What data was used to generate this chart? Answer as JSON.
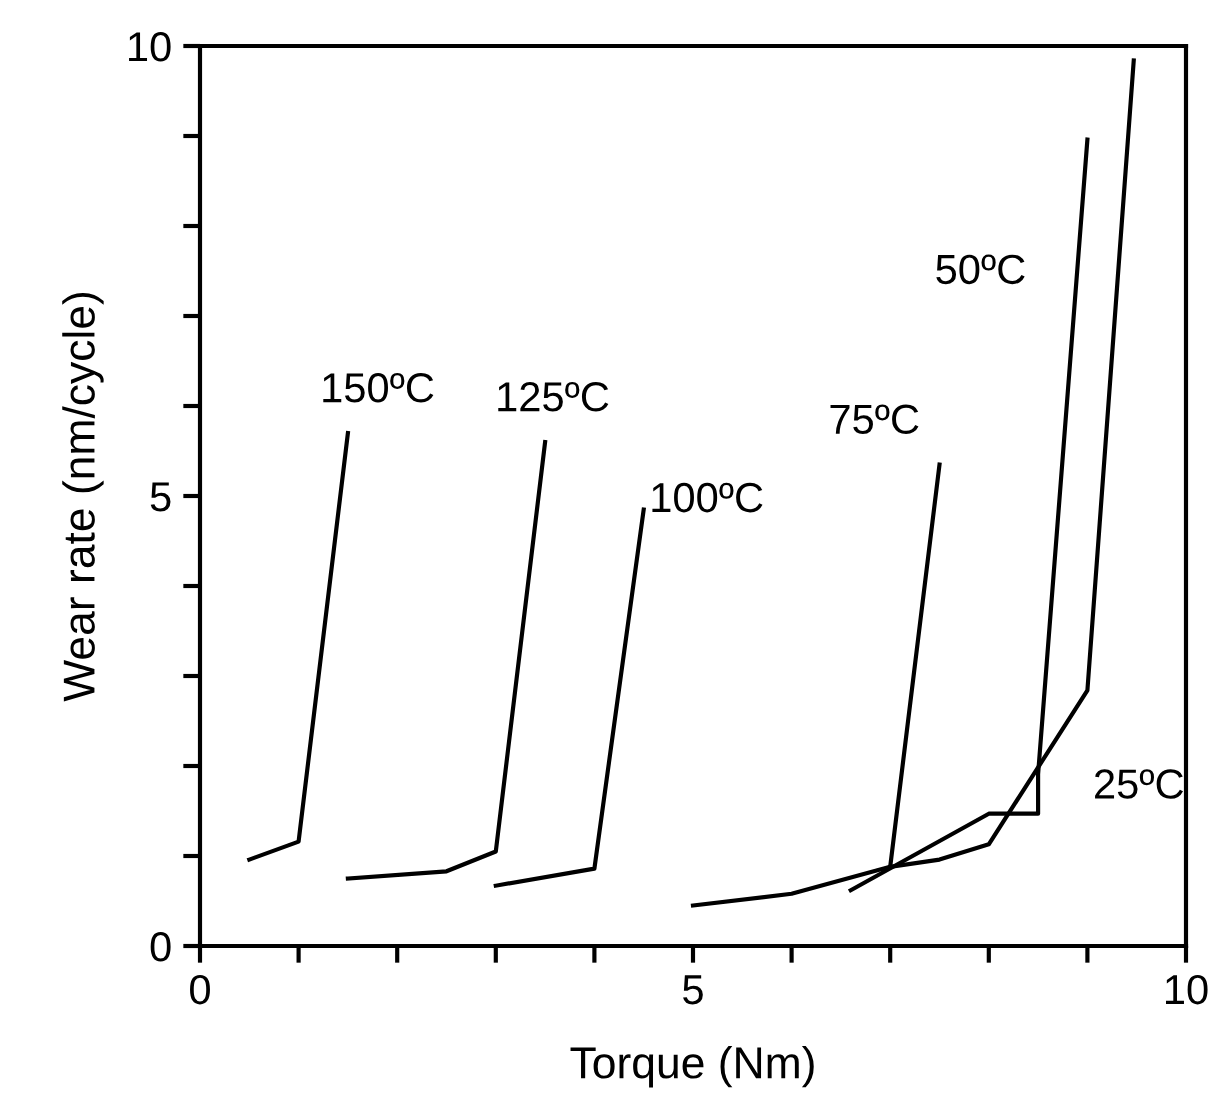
{
  "chart_data": {
    "type": "line",
    "xlabel": "Torque (Nm)",
    "ylabel": "Wear rate (nm/cycle)",
    "xlim": [
      0,
      10
    ],
    "ylim": [
      0,
      10
    ],
    "xticks": [
      0,
      {
        "value": 1,
        "label": null
      },
      {
        "value": 2,
        "label": null
      },
      {
        "value": 3,
        "label": null
      },
      {
        "value": 4,
        "label": null
      },
      5,
      {
        "value": 6,
        "label": null
      },
      {
        "value": 7,
        "label": null
      },
      {
        "value": 8,
        "label": null
      },
      {
        "value": 9,
        "label": null
      },
      10
    ],
    "yticks": [
      0,
      {
        "value": 1,
        "label": null
      },
      {
        "value": 2,
        "label": null
      },
      {
        "value": 3,
        "label": null
      },
      {
        "value": 4,
        "label": null
      },
      5,
      {
        "value": 6,
        "label": null
      },
      {
        "value": 7,
        "label": null
      },
      {
        "value": 8,
        "label": null
      },
      {
        "value": 9,
        "label": null
      },
      10
    ],
    "grid": false,
    "legend": false,
    "marker": "none",
    "line_style": "solid",
    "series": [
      {
        "name": "150ºC",
        "color": "#000000",
        "x": [
          0.5,
          1.0,
          1.5
        ],
        "values": [
          0.96,
          1.16,
          5.7
        ]
      },
      {
        "name": "125ºC",
        "color": "#000000",
        "x": [
          1.5,
          2.5,
          3.0,
          3.5
        ],
        "values": [
          0.75,
          0.83,
          1.05,
          5.6
        ]
      },
      {
        "name": "100ºC",
        "color": "#000000",
        "x": [
          3.0,
          4.0,
          4.5
        ],
        "values": [
          0.67,
          0.86,
          4.85
        ]
      },
      {
        "name": "75ºC",
        "color": "#000000",
        "x": [
          5.0,
          6.0,
          7.0,
          7.5
        ],
        "values": [
          0.45,
          0.58,
          0.88,
          5.35
        ]
      },
      {
        "name": "50ºC",
        "color": "#000000",
        "x": [
          6.6,
          8.0,
          8.5,
          8.5,
          9.0
        ],
        "values": [
          0.62,
          1.47,
          1.47,
          1.91,
          8.96
        ]
      },
      {
        "name": "25ºC",
        "color": "#000000",
        "x": [
          7.0,
          7.5,
          8.0,
          9.0,
          9.47
        ],
        "values": [
          0.88,
          0.96,
          1.13,
          2.84,
          9.84
        ]
      }
    ]
  }
}
